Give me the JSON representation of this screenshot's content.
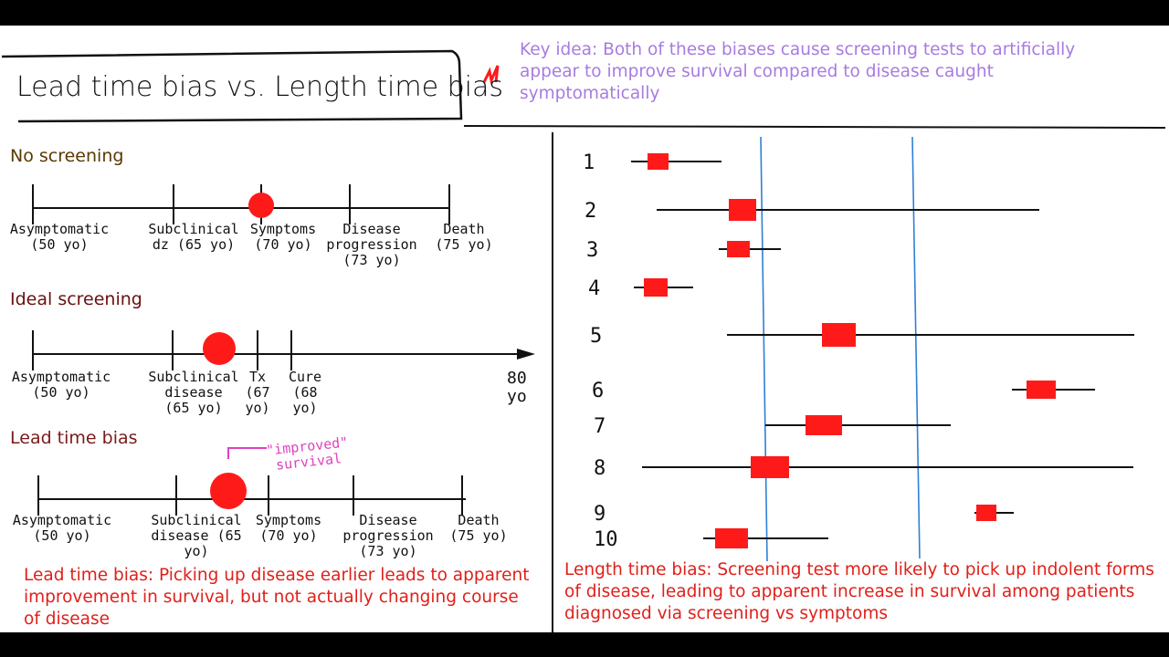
{
  "title": "Lead time bias vs. Length time bias",
  "key_idea": "Key idea: Both of these biases cause screening tests to artificially appear to improve survival compared to disease caught symptomatically",
  "colors": {
    "marker": "#ff1a1a",
    "key_idea": "#a77be0",
    "caption": "#e0201a",
    "reference_line": "#2f7fd6",
    "annotation": "#e040c0"
  },
  "no_screening": {
    "heading": "No screening",
    "labels": [
      "Asymptomatic\n(50 yo)",
      "Subclinical\ndz (65 yo)",
      "Symptoms\n(70 yo)",
      "Disease\nprogression\n(73 yo)",
      "Death\n(75 yo)"
    ]
  },
  "ideal_screening": {
    "heading": "Ideal screening",
    "labels": [
      "Asymptomatic\n(50 yo)",
      "Subclinical\ndisease\n(65 yo)",
      "Tx\n(67\nyo)",
      "Cure\n(68\nyo)"
    ],
    "end_label": "80\nyo"
  },
  "lead_time": {
    "heading": "Lead time bias",
    "labels": [
      "Asymptomatic\n(50 yo)",
      "Subclinical\ndisease (65 yo)",
      "Symptoms\n(70 yo)",
      "Disease\nprogression (73 yo)",
      "Death\n(75 yo)"
    ],
    "annotation": "\"improved\"\nsurvival",
    "caption": "Lead time bias: Picking up disease earlier leads to apparent improvement in survival, but not actually changing course of disease"
  },
  "length_time": {
    "rows": [
      "1",
      "2",
      "3",
      "4",
      "5",
      "6",
      "7",
      "8",
      "9",
      "10"
    ],
    "caption": "Length time bias: Screening test more likely to pick up indolent forms of disease, leading to apparent increase in survival among patients diagnosed via screening vs symptoms"
  }
}
